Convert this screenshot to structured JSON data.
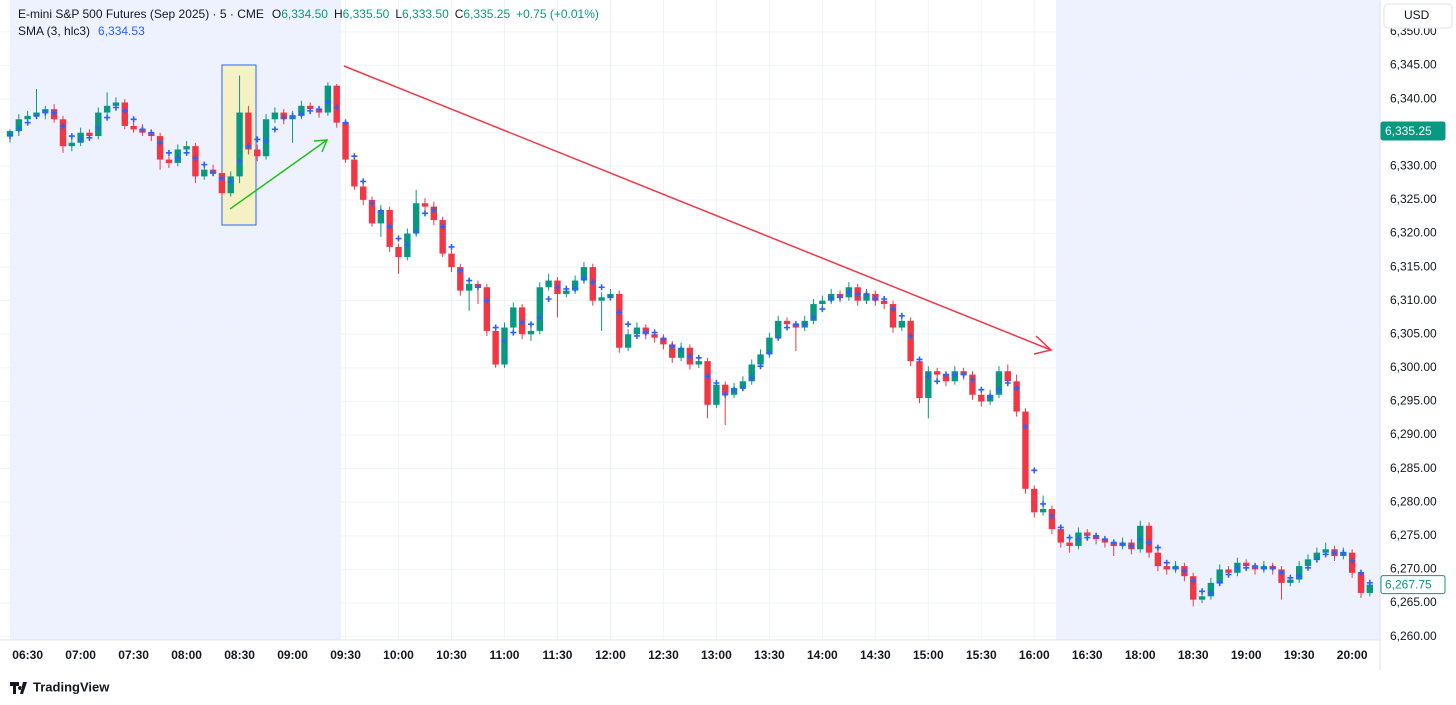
{
  "header": {
    "symbol": "E-mini S&P 500 Futures (Sep 2025) · 5 · CME",
    "o": "O",
    "open": "6,334.50",
    "h": "H",
    "high": "6,335.50",
    "l": "L",
    "low": "6,333.50",
    "c": "C",
    "close": "6,335.25",
    "change": "+0.75 (+0.01%)",
    "indicator": "SMA (3, hlc3)",
    "indicator_value": "6,334.53",
    "currency": "USD",
    "brand": "TradingView"
  },
  "chart_data": {
    "type": "candlestick",
    "up_color": "#089981",
    "down_color": "#f23645",
    "sma_color": "#2962ff",
    "grid": true,
    "ylim": [
      6259.5,
      6354.75
    ],
    "yticks": [
      {
        "value": 6260,
        "label": "6,260.00"
      },
      {
        "value": 6265,
        "label": "6,265.00"
      },
      {
        "value": 6270,
        "label": "6,270.00"
      },
      {
        "value": 6275,
        "label": "6,275.00"
      },
      {
        "value": 6280,
        "label": "6,280.00"
      },
      {
        "value": 6285,
        "label": "6,285.00"
      },
      {
        "value": 6290,
        "label": "6,290.00"
      },
      {
        "value": 6295,
        "label": "6,295.00"
      },
      {
        "value": 6300,
        "label": "6,300.00"
      },
      {
        "value": 6305,
        "label": "6,305.00"
      },
      {
        "value": 6310,
        "label": "6,310.00"
      },
      {
        "value": 6315,
        "label": "6,315.00"
      },
      {
        "value": 6320,
        "label": "6,320.00"
      },
      {
        "value": 6325,
        "label": "6,325.00"
      },
      {
        "value": 6330,
        "label": "6,330.00"
      },
      {
        "value": 6335,
        "label": "6,335.00"
      },
      {
        "value": 6340,
        "label": "6,340.00"
      },
      {
        "value": 6345,
        "label": "6,345.00"
      },
      {
        "value": 6350,
        "label": "6,350.00"
      }
    ],
    "price_tags": [
      {
        "value": 6335.25,
        "label": "6,335.25",
        "style": "filled"
      },
      {
        "value": 6267.75,
        "label": "6,267.75",
        "style": "outline"
      }
    ],
    "categories": [
      null,
      null,
      "06:30",
      null,
      null,
      null,
      null,
      null,
      "07:00",
      null,
      null,
      null,
      null,
      null,
      "07:30",
      null,
      null,
      null,
      null,
      null,
      "08:00",
      null,
      null,
      null,
      null,
      null,
      "08:30",
      null,
      null,
      null,
      null,
      null,
      "09:00",
      null,
      null,
      null,
      null,
      null,
      "09:30",
      null,
      null,
      null,
      null,
      null,
      "10:00",
      null,
      null,
      null,
      null,
      null,
      "10:30",
      null,
      null,
      null,
      null,
      null,
      "11:00",
      null,
      null,
      null,
      null,
      null,
      "11:30",
      null,
      null,
      null,
      null,
      null,
      "12:00",
      null,
      null,
      null,
      null,
      null,
      "12:30",
      null,
      null,
      null,
      null,
      null,
      "13:00",
      null,
      null,
      null,
      null,
      null,
      "13:30",
      null,
      null,
      null,
      null,
      null,
      "14:00",
      null,
      null,
      null,
      null,
      null,
      "14:30",
      null,
      null,
      null,
      null,
      null,
      "15:00",
      null,
      null,
      null,
      null,
      null,
      "15:30",
      null,
      null,
      null,
      null,
      null,
      "16:00",
      null,
      null,
      null,
      null,
      null,
      "16:30",
      null,
      null,
      null,
      null,
      null,
      "18:00",
      null,
      null,
      null,
      null,
      null,
      "18:30",
      null,
      null,
      null,
      null,
      null,
      "19:00",
      null,
      null,
      null,
      null,
      null,
      "19:30",
      null,
      null,
      null,
      null,
      null,
      "20:00",
      null,
      null
    ],
    "ohlc": [
      [
        6334.5,
        6335.5,
        6333.5,
        6335.25
      ],
      [
        6335.25,
        6337.75,
        6334.5,
        6337
      ],
      [
        6337,
        6338.25,
        6336.5,
        6337.5
      ],
      [
        6337.5,
        6341.5,
        6337,
        6338
      ],
      [
        6338,
        6339,
        6337,
        6338.5
      ],
      [
        6338.5,
        6339.25,
        6336.5,
        6337
      ],
      [
        6337,
        6337.5,
        6332,
        6333
      ],
      [
        6333,
        6334.25,
        6332.25,
        6333.5
      ],
      [
        6333.5,
        6335.75,
        6333,
        6335
      ],
      [
        6335,
        6335.5,
        6333.75,
        6334.5
      ],
      [
        6334.5,
        6338.75,
        6334,
        6338
      ],
      [
        6338,
        6341,
        6337.5,
        6339
      ],
      [
        6339,
        6340.25,
        6338.25,
        6339.5
      ],
      [
        6339.5,
        6340,
        6335.5,
        6336
      ],
      [
        6336,
        6336.75,
        6335,
        6335.5
      ],
      [
        6335.5,
        6336.25,
        6334.5,
        6335
      ],
      [
        6335,
        6335.5,
        6333.75,
        6334.5
      ],
      [
        6334.5,
        6335,
        6329.5,
        6331
      ],
      [
        6331,
        6331.5,
        6329.75,
        6330.5
      ],
      [
        6330.5,
        6333.25,
        6330,
        6332.5
      ],
      [
        6332.5,
        6333.75,
        6331.75,
        6333
      ],
      [
        6333,
        6333.5,
        6327.5,
        6328.5
      ],
      [
        6328.5,
        6330.25,
        6328,
        6329.5
      ],
      [
        6329.5,
        6330.25,
        6328.5,
        6329
      ],
      [
        6329,
        6329.5,
        6325.5,
        6326
      ],
      [
        6326,
        6329.25,
        6325.5,
        6328.5
      ],
      [
        6328.5,
        6343.5,
        6327.5,
        6338
      ],
      [
        6338,
        6339,
        6331.75,
        6332.5
      ],
      [
        6332.5,
        6333.25,
        6330.75,
        6331.5
      ],
      [
        6331.5,
        6337.75,
        6331,
        6337
      ],
      [
        6337,
        6338.75,
        6336.5,
        6338
      ],
      [
        6338,
        6338.5,
        6336.25,
        6337
      ],
      [
        6337,
        6338.25,
        6333.5,
        6337.5
      ],
      [
        6337.5,
        6339.75,
        6337,
        6339
      ],
      [
        6339,
        6339.5,
        6337.75,
        6338.5
      ],
      [
        6338.5,
        6339,
        6337.25,
        6338
      ],
      [
        6338,
        6342.5,
        6337.5,
        6342
      ],
      [
        6342,
        6342.25,
        6335.75,
        6336.5
      ],
      [
        6336.5,
        6337,
        6330.5,
        6331
      ],
      [
        6331,
        6331.5,
        6326.5,
        6327
      ],
      [
        6327,
        6327.5,
        6324.25,
        6325
      ],
      [
        6325,
        6325.5,
        6321,
        6321.5
      ],
      [
        6321.5,
        6324.25,
        6319.5,
        6323.5
      ],
      [
        6323.5,
        6324,
        6317.25,
        6318
      ],
      [
        6318,
        6318.5,
        6314,
        6316.5
      ],
      [
        6316.5,
        6320.75,
        6316,
        6320
      ],
      [
        6320,
        6326.5,
        6319.5,
        6324.5
      ],
      [
        6324.5,
        6325.25,
        6323.25,
        6324
      ],
      [
        6324,
        6324.75,
        6321.25,
        6322
      ],
      [
        6322,
        6322.5,
        6316.5,
        6317
      ],
      [
        6317,
        6317.5,
        6314.25,
        6315
      ],
      [
        6315,
        6315.5,
        6310.75,
        6311.5
      ],
      [
        6311.5,
        6313.25,
        6308.5,
        6312.5
      ],
      [
        6312.5,
        6313,
        6309.5,
        6312
      ],
      [
        6312,
        6312.5,
        6304.75,
        6305.5
      ],
      [
        6305.5,
        6306,
        6300,
        6300.5
      ],
      [
        6300.5,
        6306.75,
        6300,
        6306
      ],
      [
        6306,
        6309.75,
        6305.5,
        6309
      ],
      [
        6309,
        6309.5,
        6304.25,
        6305
      ],
      [
        6305,
        6306.25,
        6304,
        6305.5
      ],
      [
        6305.5,
        6312.75,
        6305,
        6312
      ],
      [
        6312,
        6314,
        6311.5,
        6313
      ],
      [
        6313,
        6313.5,
        6307.5,
        6311
      ],
      [
        6311,
        6312.25,
        6310.5,
        6311.5
      ],
      [
        6311.5,
        6313.75,
        6311,
        6313
      ],
      [
        6313,
        6315.75,
        6312.5,
        6315
      ],
      [
        6315,
        6315.5,
        6309.25,
        6310
      ],
      [
        6310,
        6311.25,
        6305.5,
        6310.5
      ],
      [
        6310.5,
        6311.75,
        6310,
        6311
      ],
      [
        6311,
        6311.5,
        6302.25,
        6303
      ],
      [
        6303,
        6305.75,
        6302.5,
        6305
      ],
      [
        6305,
        6306.75,
        6304.5,
        6306
      ],
      [
        6306,
        6306.5,
        6304.25,
        6305
      ],
      [
        6305,
        6305.75,
        6303.75,
        6304.5
      ],
      [
        6304.5,
        6305,
        6302.75,
        6303.5
      ],
      [
        6303.5,
        6304,
        6300.75,
        6301.5
      ],
      [
        6301.5,
        6303.75,
        6301,
        6303
      ],
      [
        6303,
        6303.5,
        6299.75,
        6300.5
      ],
      [
        6300.5,
        6301.75,
        6300,
        6301
      ],
      [
        6301,
        6301.5,
        6292.5,
        6294.5
      ],
      [
        6294.5,
        6298.25,
        6294,
        6297.5
      ],
      [
        6297.5,
        6298,
        6291.5,
        6296
      ],
      [
        6296,
        6297.75,
        6295.5,
        6297
      ],
      [
        6297,
        6298.75,
        6296.5,
        6298
      ],
      [
        6298,
        6301.25,
        6297.5,
        6300.5
      ],
      [
        6300.5,
        6302.75,
        6300,
        6302
      ],
      [
        6302,
        6305.25,
        6301.5,
        6304.5
      ],
      [
        6304.5,
        6307.75,
        6304,
        6307
      ],
      [
        6307,
        6307.5,
        6305.75,
        6306.5
      ],
      [
        6306.5,
        6307,
        6302.5,
        6306
      ],
      [
        6306,
        6307.75,
        6305.5,
        6307
      ],
      [
        6307,
        6310.25,
        6306.5,
        6309.5
      ],
      [
        6309.5,
        6310.75,
        6309,
        6310
      ],
      [
        6310,
        6311.75,
        6309.5,
        6311
      ],
      [
        6311,
        6311.5,
        6309.75,
        6310.5
      ],
      [
        6310.5,
        6312.75,
        6310,
        6312
      ],
      [
        6312,
        6312.5,
        6309.25,
        6310
      ],
      [
        6310,
        6311.75,
        6309.5,
        6311
      ],
      [
        6311,
        6311.5,
        6309.25,
        6310
      ],
      [
        6310,
        6310.5,
        6308.75,
        6309.5
      ],
      [
        6309.5,
        6310,
        6305.25,
        6306
      ],
      [
        6306,
        6307.75,
        6305.5,
        6307
      ],
      [
        6307,
        6307.5,
        6300.25,
        6301
      ],
      [
        6301,
        6301.5,
        6294.75,
        6295.5
      ],
      [
        6295.5,
        6300.25,
        6292.5,
        6299.5
      ],
      [
        6299.5,
        6300,
        6298.25,
        6299
      ],
      [
        6299,
        6299.5,
        6297.25,
        6298
      ],
      [
        6298,
        6300.25,
        6297.5,
        6299.5
      ],
      [
        6299.5,
        6300,
        6298.25,
        6299
      ],
      [
        6299,
        6299.5,
        6295.25,
        6296
      ],
      [
        6296,
        6296.5,
        6294.25,
        6295
      ],
      [
        6295,
        6296.75,
        6294.5,
        6296
      ],
      [
        6296,
        6300.25,
        6295.5,
        6299.5
      ],
      [
        6299.5,
        6300.5,
        6297.25,
        6298
      ],
      [
        6298,
        6299,
        6292.75,
        6293.5
      ],
      [
        6293.5,
        6294,
        6281.25,
        6282
      ],
      [
        6282,
        6282.5,
        6277.75,
        6278.5
      ],
      [
        6278.5,
        6281,
        6278,
        6279
      ],
      [
        6279,
        6279.5,
        6275.25,
        6276
      ],
      [
        6276,
        6276.5,
        6273.25,
        6274
      ],
      [
        6274,
        6274.5,
        6272.5,
        6273.5
      ],
      [
        6273.5,
        6276.25,
        6273,
        6275.5
      ],
      [
        6275.5,
        6276,
        6274.25,
        6275
      ],
      [
        6275,
        6275.5,
        6273.75,
        6274.5
      ],
      [
        6274.5,
        6275,
        6273.25,
        6274
      ],
      [
        6274,
        6274.5,
        6272,
        6273.5
      ],
      [
        6273.5,
        6274.75,
        6273,
        6274
      ],
      [
        6274,
        6274.5,
        6272.25,
        6273
      ],
      [
        6273,
        6277.25,
        6272.5,
        6276.5
      ],
      [
        6276.5,
        6277,
        6271.75,
        6272.5
      ],
      [
        6272.5,
        6273,
        6269.75,
        6270.5
      ],
      [
        6270.5,
        6271,
        6269.25,
        6270
      ],
      [
        6270,
        6271.25,
        6269.5,
        6270.5
      ],
      [
        6270.5,
        6271,
        6268.25,
        6269
      ],
      [
        6269,
        6269.5,
        6264.5,
        6265.5
      ],
      [
        6265.5,
        6266.75,
        6265,
        6266
      ],
      [
        6266,
        6268.75,
        6265.5,
        6268
      ],
      [
        6268,
        6270.75,
        6267.5,
        6270
      ],
      [
        6270,
        6270.5,
        6268.75,
        6269.5
      ],
      [
        6269.5,
        6271.75,
        6269,
        6271
      ],
      [
        6271,
        6271.5,
        6269.75,
        6270.5
      ],
      [
        6270.5,
        6271,
        6269.25,
        6270
      ],
      [
        6270,
        6271.25,
        6269.5,
        6270.5
      ],
      [
        6270.5,
        6271,
        6269.25,
        6270
      ],
      [
        6270,
        6270.5,
        6265.5,
        6268
      ],
      [
        6268,
        6269.25,
        6267.5,
        6268.5
      ],
      [
        6268.5,
        6271.25,
        6268,
        6270.5
      ],
      [
        6270.5,
        6272.25,
        6270,
        6271.5
      ],
      [
        6271.5,
        6273.25,
        6271,
        6272.5
      ],
      [
        6272.5,
        6274,
        6272,
        6273
      ],
      [
        6273,
        6273.5,
        6271.25,
        6272
      ],
      [
        6272,
        6273.25,
        6271.5,
        6272.5
      ],
      [
        6272.5,
        6273,
        6268.75,
        6269.5
      ],
      [
        6269.5,
        6270,
        6265.75,
        6266.5
      ],
      [
        6266.5,
        6268.5,
        6266,
        6267.75
      ]
    ],
    "sma": [
      6334.53,
      6335.5,
      6336.5,
      6337.5,
      6338,
      6338,
      6336,
      6334.5,
      6334,
      6334.25,
      6335.75,
      6337.25,
      6338.75,
      6338.25,
      6337,
      6335.5,
      6335,
      6333.5,
      6332,
      6331.25,
      6332,
      6331.25,
      6330.25,
      6329,
      6328.25,
      6327.75,
      6330.75,
      6333,
      6334,
      6333.75,
      6335.5,
      6337.25,
      6337.5,
      6337.75,
      6338.25,
      6338.5,
      6339.5,
      6338.75,
      6336.5,
      6331.5,
      6327.75,
      6324.5,
      6323.25,
      6321,
      6319.25,
      6318.25,
      6320.25,
      6323,
      6323.5,
      6321,
      6318,
      6314.5,
      6313,
      6312,
      6310,
      6306,
      6304,
      6305.25,
      6306.75,
      6306.5,
      6307.5,
      6310.25,
      6312,
      6311.75,
      6311.75,
      6313.25,
      6312.75,
      6312,
      6310.5,
      6308.25,
      6306.5,
      6304.75,
      6305.25,
      6305.25,
      6304.25,
      6303.25,
      6302.75,
      6301.75,
      6301.5,
      6298.75,
      6297.75,
      6296,
      6296.75,
      6297,
      6298.5,
      6300.25,
      6302.25,
      6304.5,
      6306,
      6306.5,
      6306.5,
      6307.5,
      6308.75,
      6310.25,
      6310.5,
      6311.25,
      6311,
      6311,
      6310.25,
      6310.25,
      6308.75,
      6307.75,
      6304.75,
      6301.25,
      6298.75,
      6298,
      6299,
      6299,
      6299,
      6298.25,
      6296.75,
      6295.75,
      6296.75,
      6297.75,
      6297,
      6291.25,
      6284.75,
      6279.75,
      6278,
      6276.25,
      6274.75,
      6274.5,
      6274.75,
      6275,
      6274.5,
      6274,
      6273.75,
      6273.5,
      6274.5,
      6274,
      6273.25,
      6271,
      6270.25,
      6269.75,
      6268.25,
      6266.75,
      6266.5,
      6268,
      6269.25,
      6270.25,
      6270.25,
      6270.5,
      6270.25,
      6270.25,
      6269.5,
      6268.75,
      6269,
      6270.25,
      6271.5,
      6272.25,
      6272.5,
      6272.5,
      6271.25,
      6269.5,
      6268
    ]
  }
}
